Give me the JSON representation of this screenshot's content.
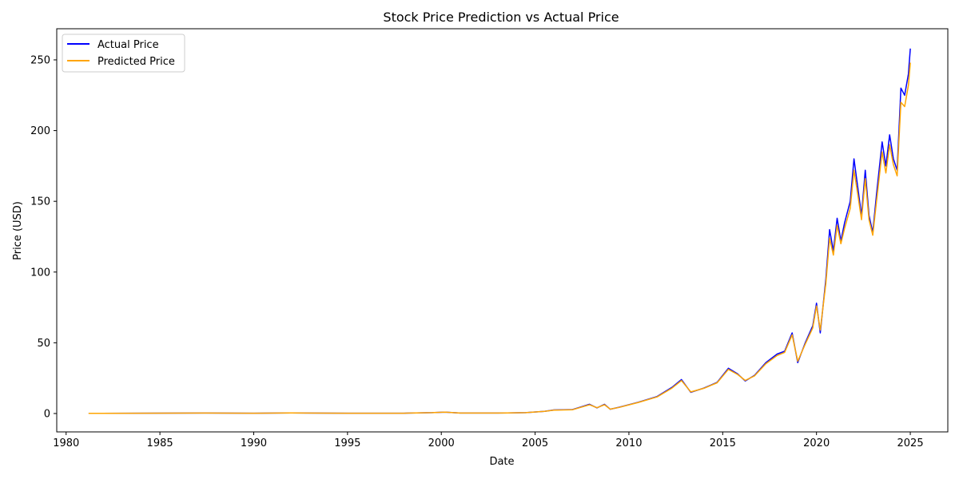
{
  "chart_data": {
    "type": "line",
    "title": "Stock Price Prediction vs Actual Price",
    "xlabel": "Date",
    "ylabel": "Price (USD)",
    "xlim": [
      1979.5,
      2027.0
    ],
    "ylim": [
      -13,
      272
    ],
    "xticks": [
      1980,
      1985,
      1990,
      1995,
      2000,
      2005,
      2010,
      2015,
      2020,
      2025
    ],
    "yticks": [
      0,
      50,
      100,
      150,
      200,
      250
    ],
    "grid": false,
    "legend_position": "top-left",
    "series": [
      {
        "name": "Actual Price",
        "color": "#0000ff",
        "points": [
          [
            1981.2,
            0.1
          ],
          [
            1987.5,
            0.3
          ],
          [
            1990.0,
            0.2
          ],
          [
            1992.0,
            0.4
          ],
          [
            1995.0,
            0.2
          ],
          [
            1998.0,
            0.2
          ],
          [
            1999.5,
            0.6
          ],
          [
            2000.2,
            1.0
          ],
          [
            2001.0,
            0.3
          ],
          [
            2003.0,
            0.3
          ],
          [
            2004.5,
            0.6
          ],
          [
            2005.5,
            1.5
          ],
          [
            2006.0,
            2.5
          ],
          [
            2007.0,
            2.8
          ],
          [
            2007.9,
            6.5
          ],
          [
            2008.3,
            4.0
          ],
          [
            2008.7,
            6.5
          ],
          [
            2009.0,
            3.0
          ],
          [
            2009.5,
            4.5
          ],
          [
            2010.5,
            8.0
          ],
          [
            2011.5,
            12.0
          ],
          [
            2012.3,
            18.5
          ],
          [
            2012.8,
            24.0
          ],
          [
            2013.3,
            15.0
          ],
          [
            2014.0,
            18.0
          ],
          [
            2014.7,
            22.0
          ],
          [
            2015.3,
            32.0
          ],
          [
            2015.8,
            28.0
          ],
          [
            2016.2,
            23.0
          ],
          [
            2016.7,
            27.0
          ],
          [
            2017.3,
            36.0
          ],
          [
            2017.9,
            42.0
          ],
          [
            2018.3,
            44.0
          ],
          [
            2018.7,
            57.0
          ],
          [
            2019.0,
            36.0
          ],
          [
            2019.4,
            50.0
          ],
          [
            2019.8,
            62.0
          ],
          [
            2020.0,
            78.0
          ],
          [
            2020.2,
            57.0
          ],
          [
            2020.5,
            95.0
          ],
          [
            2020.7,
            130.0
          ],
          [
            2020.9,
            115.0
          ],
          [
            2021.1,
            138.0
          ],
          [
            2021.3,
            122.0
          ],
          [
            2021.5,
            135.0
          ],
          [
            2021.8,
            150.0
          ],
          [
            2022.0,
            180.0
          ],
          [
            2022.2,
            160.0
          ],
          [
            2022.4,
            140.0
          ],
          [
            2022.6,
            172.0
          ],
          [
            2022.8,
            140.0
          ],
          [
            2023.0,
            128.0
          ],
          [
            2023.2,
            155.0
          ],
          [
            2023.5,
            192.0
          ],
          [
            2023.7,
            175.0
          ],
          [
            2023.9,
            197.0
          ],
          [
            2024.1,
            180.0
          ],
          [
            2024.3,
            172.0
          ],
          [
            2024.5,
            230.0
          ],
          [
            2024.7,
            225.0
          ],
          [
            2024.9,
            240.0
          ],
          [
            2025.0,
            258.0
          ]
        ]
      },
      {
        "name": "Predicted Price",
        "color": "#ffa500",
        "points": [
          [
            1981.2,
            0.1
          ],
          [
            1987.5,
            0.3
          ],
          [
            1990.0,
            0.2
          ],
          [
            1992.0,
            0.4
          ],
          [
            1995.0,
            0.2
          ],
          [
            1998.0,
            0.2
          ],
          [
            1999.5,
            0.6
          ],
          [
            2000.2,
            1.0
          ],
          [
            2001.0,
            0.3
          ],
          [
            2003.0,
            0.3
          ],
          [
            2004.5,
            0.6
          ],
          [
            2005.5,
            1.5
          ],
          [
            2006.0,
            2.4
          ],
          [
            2007.0,
            2.7
          ],
          [
            2007.9,
            6.2
          ],
          [
            2008.3,
            4.1
          ],
          [
            2008.7,
            6.2
          ],
          [
            2009.0,
            3.1
          ],
          [
            2009.5,
            4.4
          ],
          [
            2010.5,
            7.8
          ],
          [
            2011.5,
            11.7
          ],
          [
            2012.3,
            18.0
          ],
          [
            2012.8,
            23.3
          ],
          [
            2013.3,
            15.3
          ],
          [
            2014.0,
            17.8
          ],
          [
            2014.7,
            21.7
          ],
          [
            2015.3,
            31.2
          ],
          [
            2015.8,
            27.6
          ],
          [
            2016.2,
            23.4
          ],
          [
            2016.7,
            26.6
          ],
          [
            2017.3,
            35.2
          ],
          [
            2017.9,
            41.0
          ],
          [
            2018.3,
            43.2
          ],
          [
            2018.7,
            55.6
          ],
          [
            2019.0,
            37.0
          ],
          [
            2019.4,
            49.0
          ],
          [
            2019.8,
            60.5
          ],
          [
            2020.0,
            76.0
          ],
          [
            2020.2,
            59.0
          ],
          [
            2020.5,
            92.0
          ],
          [
            2020.7,
            124.0
          ],
          [
            2020.9,
            112.0
          ],
          [
            2021.1,
            133.0
          ],
          [
            2021.3,
            120.0
          ],
          [
            2021.5,
            131.0
          ],
          [
            2021.8,
            145.0
          ],
          [
            2022.0,
            172.0
          ],
          [
            2022.2,
            155.0
          ],
          [
            2022.4,
            137.0
          ],
          [
            2022.6,
            166.0
          ],
          [
            2022.8,
            137.0
          ],
          [
            2023.0,
            126.0
          ],
          [
            2023.2,
            150.0
          ],
          [
            2023.5,
            185.0
          ],
          [
            2023.7,
            170.0
          ],
          [
            2023.9,
            190.0
          ],
          [
            2024.1,
            176.0
          ],
          [
            2024.3,
            168.0
          ],
          [
            2024.5,
            220.0
          ],
          [
            2024.7,
            217.0
          ],
          [
            2024.9,
            232.0
          ],
          [
            2025.0,
            248.0
          ]
        ]
      }
    ]
  }
}
